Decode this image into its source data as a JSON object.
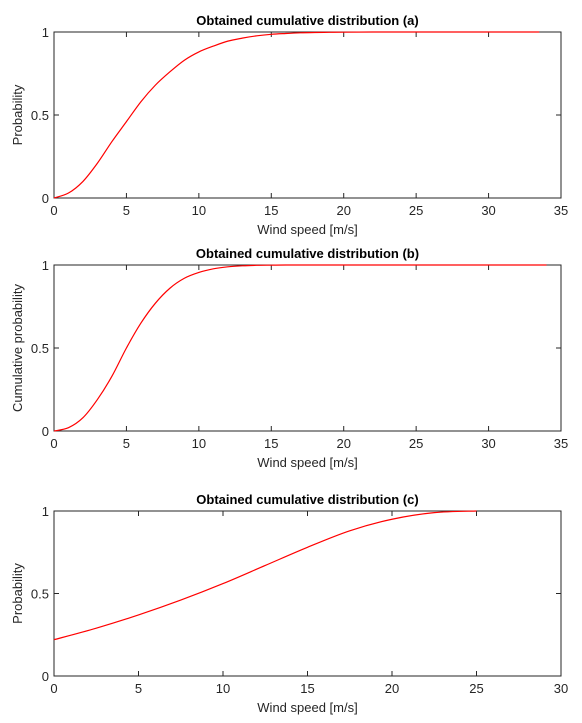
{
  "chart_data": [
    {
      "type": "line",
      "title": "Obtained cumulative distribution (a)",
      "xlabel": "Wind speed [m/s]",
      "ylabel": "Probability",
      "xlim": [
        0,
        35
      ],
      "ylim": [
        0,
        1
      ],
      "xticks": [
        "0",
        "5",
        "10",
        "15",
        "20",
        "25",
        "30",
        "35"
      ],
      "yticks": [
        "0",
        "0.5",
        "1"
      ],
      "grid": false,
      "color": "#ff0000",
      "series": [
        {
          "x": [
            0,
            1,
            2,
            3,
            4,
            5,
            6,
            7,
            8,
            9,
            10,
            11,
            12,
            13,
            14,
            15,
            16,
            17,
            18,
            19,
            20,
            22,
            25,
            30,
            33.5
          ],
          "y": [
            0,
            0.03,
            0.1,
            0.21,
            0.34,
            0.46,
            0.58,
            0.68,
            0.76,
            0.83,
            0.88,
            0.915,
            0.945,
            0.963,
            0.977,
            0.986,
            0.991,
            0.995,
            0.997,
            0.998,
            0.999,
            1,
            1,
            1,
            1
          ]
        }
      ]
    },
    {
      "type": "line",
      "title": "Obtained cumulative distribution (b)",
      "xlabel": "Wind speed [m/s]",
      "ylabel": "Cumulative probability",
      "xlim": [
        0,
        35
      ],
      "ylim": [
        0,
        1
      ],
      "xticks": [
        "0",
        "5",
        "10",
        "15",
        "20",
        "25",
        "30",
        "35"
      ],
      "yticks": [
        "0",
        "0.5",
        "1"
      ],
      "grid": false,
      "color": "#ff0000",
      "series": [
        {
          "x": [
            0,
            1,
            2,
            3,
            4,
            5,
            6,
            7,
            8,
            9,
            10,
            11,
            12,
            13,
            14,
            15,
            16,
            18,
            20,
            25,
            30,
            34
          ],
          "y": [
            0,
            0.02,
            0.08,
            0.19,
            0.33,
            0.5,
            0.65,
            0.77,
            0.86,
            0.92,
            0.955,
            0.977,
            0.989,
            0.995,
            0.998,
            0.999,
            1,
            1,
            1,
            1,
            1,
            1
          ]
        }
      ]
    },
    {
      "type": "line",
      "title": "Obtained cumulative distribution (c)",
      "xlabel": "Wind speed [m/s]",
      "ylabel": "Probability",
      "xlim": [
        0,
        30
      ],
      "ylim": [
        0,
        1
      ],
      "xticks": [
        "0",
        "5",
        "10",
        "15",
        "20",
        "25",
        "30"
      ],
      "yticks": [
        "0",
        "0.5",
        "1"
      ],
      "grid": false,
      "color": "#ff0000",
      "series": [
        {
          "x": [
            0,
            2.5,
            5,
            7.5,
            10,
            12.5,
            15,
            17.5,
            20,
            22.5,
            25
          ],
          "y": [
            0.22,
            0.29,
            0.37,
            0.46,
            0.56,
            0.67,
            0.78,
            0.88,
            0.95,
            0.99,
            1
          ]
        }
      ]
    }
  ]
}
